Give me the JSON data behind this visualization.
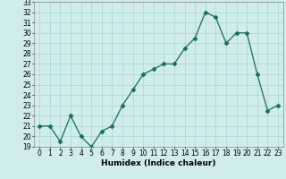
{
  "x": [
    0,
    1,
    2,
    3,
    4,
    5,
    6,
    7,
    8,
    9,
    10,
    11,
    12,
    13,
    14,
    15,
    16,
    17,
    18,
    19,
    20,
    21,
    22,
    23
  ],
  "y": [
    21,
    21,
    19.5,
    22,
    20,
    19,
    20.5,
    21,
    23,
    24.5,
    26,
    26.5,
    27,
    27,
    28.5,
    29.5,
    32,
    31.5,
    29,
    30,
    30,
    26,
    22.5,
    23
  ],
  "xlabel": "Humidex (Indice chaleur)",
  "xlim": [
    -0.5,
    23.5
  ],
  "ylim": [
    19,
    33
  ],
  "yticks": [
    19,
    20,
    21,
    22,
    23,
    24,
    25,
    26,
    27,
    28,
    29,
    30,
    31,
    32,
    33
  ],
  "xticks": [
    0,
    1,
    2,
    3,
    4,
    5,
    6,
    7,
    8,
    9,
    10,
    11,
    12,
    13,
    14,
    15,
    16,
    17,
    18,
    19,
    20,
    21,
    22,
    23
  ],
  "line_color": "#1a6b5a",
  "marker": "D",
  "marker_size": 2.5,
  "bg_color": "#d0ecec",
  "grid_color": "#a8d4d4",
  "label_fontsize": 6.5,
  "tick_fontsize": 5.5
}
